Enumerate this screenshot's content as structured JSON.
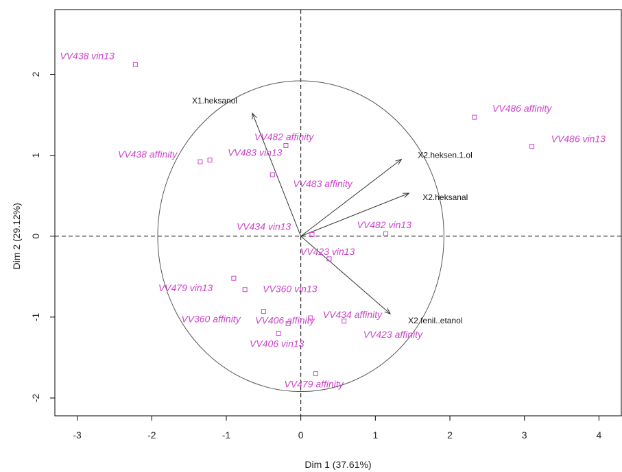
{
  "chart_data": {
    "type": "scatter",
    "xlabel": "Dim 1 (37.61%)",
    "ylabel": "Dim 2 (29.12%)",
    "xlim": [
      -3.3,
      4.3
    ],
    "ylim": [
      -2.22,
      2.8
    ],
    "x_ticks": [
      -3,
      -2,
      -1,
      0,
      1,
      2,
      3,
      4
    ],
    "y_ticks": [
      -2,
      -1,
      0,
      1,
      2
    ],
    "x_tick_labels": [
      "-3",
      "-2",
      "-1",
      "0",
      "1",
      "2",
      "3",
      "4"
    ],
    "y_tick_labels": [
      "-2",
      "-1",
      "0",
      "1",
      "2"
    ],
    "point_color": "#cc44cc",
    "circle_radius": 1.92,
    "points": [
      {
        "label": "VV438 vin13",
        "x": -2.22,
        "y": 2.12
      },
      {
        "label": "VV438 affinity",
        "x": -1.35,
        "y": 0.92
      },
      {
        "label": "VV483 vin13",
        "x": -1.22,
        "y": 0.94
      },
      {
        "label": "VV482 affinity",
        "x": -0.2,
        "y": 1.12
      },
      {
        "label": "VV483 affinity",
        "x": -0.38,
        "y": 0.76
      },
      {
        "label": "VV486 affinity",
        "x": 2.33,
        "y": 1.47
      },
      {
        "label": "VV486 vin13",
        "x": 3.1,
        "y": 1.11
      },
      {
        "label": "VV434 vin13",
        "x": 0.15,
        "y": 0.02
      },
      {
        "label": "VV482 vin13",
        "x": 1.14,
        "y": 0.03
      },
      {
        "label": "VV423 vin13",
        "x": 0.38,
        "y": -0.28
      },
      {
        "label": "VV479 vin13",
        "x": -0.9,
        "y": -0.52
      },
      {
        "label": "VV360 vin13",
        "x": -0.75,
        "y": -0.66
      },
      {
        "label": "VV360 affinity",
        "x": -0.5,
        "y": -0.93
      },
      {
        "label": "VV406 affinity",
        "x": -0.17,
        "y": -1.08
      },
      {
        "label": "VV434 affinity",
        "x": 0.13,
        "y": -1.01
      },
      {
        "label": "VV423 affinity",
        "x": 0.58,
        "y": -1.05
      },
      {
        "label": "VV406 vin13",
        "x": -0.3,
        "y": -1.2
      },
      {
        "label": "VV479 affinity",
        "x": 0.2,
        "y": -1.7
      }
    ],
    "variables": [
      {
        "label": "X1.heksanol",
        "x": -0.65,
        "y": 1.52
      },
      {
        "label": "X2.heksen.1.ol",
        "x": 1.35,
        "y": 0.95
      },
      {
        "label": "X2.heksanal",
        "x": 1.45,
        "y": 0.53
      },
      {
        "label": "X2.fenil..etanol",
        "x": 1.2,
        "y": -0.96
      }
    ]
  }
}
